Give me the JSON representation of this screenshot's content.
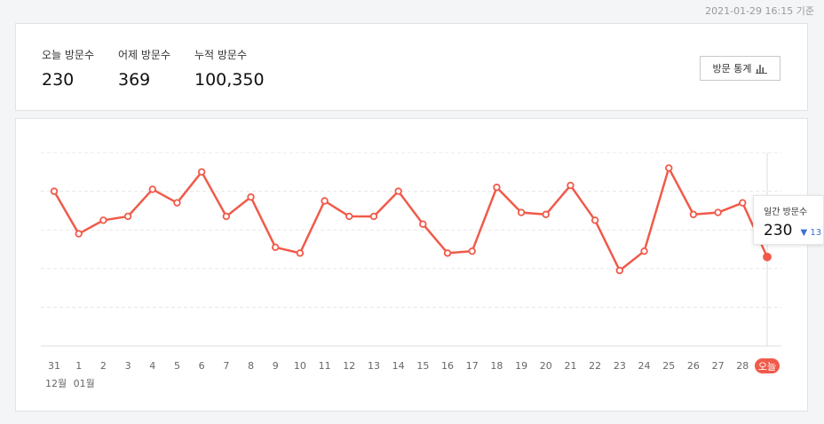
{
  "header": {
    "timestamp": "2021-01-29 16:15 기준"
  },
  "summary": {
    "today_label": "오늘 방문수",
    "today_value": "230",
    "yesterday_label": "어제 방문수",
    "yesterday_value": "369",
    "total_label": "누적 방문수",
    "total_value": "100,350",
    "stats_button_label": "방문 통계",
    "stats_button_icon": "bar-chart-icon"
  },
  "tooltip": {
    "label": "일간 방문수",
    "value": "230",
    "change": "▼ 13"
  },
  "month_labels": [
    "12월",
    "01월"
  ],
  "colors": {
    "line": "#f05a4a",
    "today_badge": "#f05a4a",
    "grid": "#e8e8e8",
    "tooltip_change": "#3f6fd8"
  },
  "chart_data": {
    "type": "line",
    "categories": [
      "31",
      "1",
      "2",
      "3",
      "4",
      "5",
      "6",
      "7",
      "8",
      "9",
      "10",
      "11",
      "12",
      "13",
      "14",
      "15",
      "16",
      "17",
      "18",
      "19",
      "20",
      "21",
      "22",
      "23",
      "24",
      "25",
      "26",
      "27",
      "28",
      "오늘"
    ],
    "values": [
      400,
      290,
      325,
      335,
      405,
      370,
      450,
      335,
      385,
      255,
      240,
      375,
      335,
      335,
      400,
      315,
      240,
      245,
      410,
      345,
      340,
      415,
      325,
      195,
      245,
      460,
      340,
      345,
      370,
      230
    ],
    "ylim": [
      0,
      500
    ],
    "grid": true,
    "highlight_last": true
  }
}
